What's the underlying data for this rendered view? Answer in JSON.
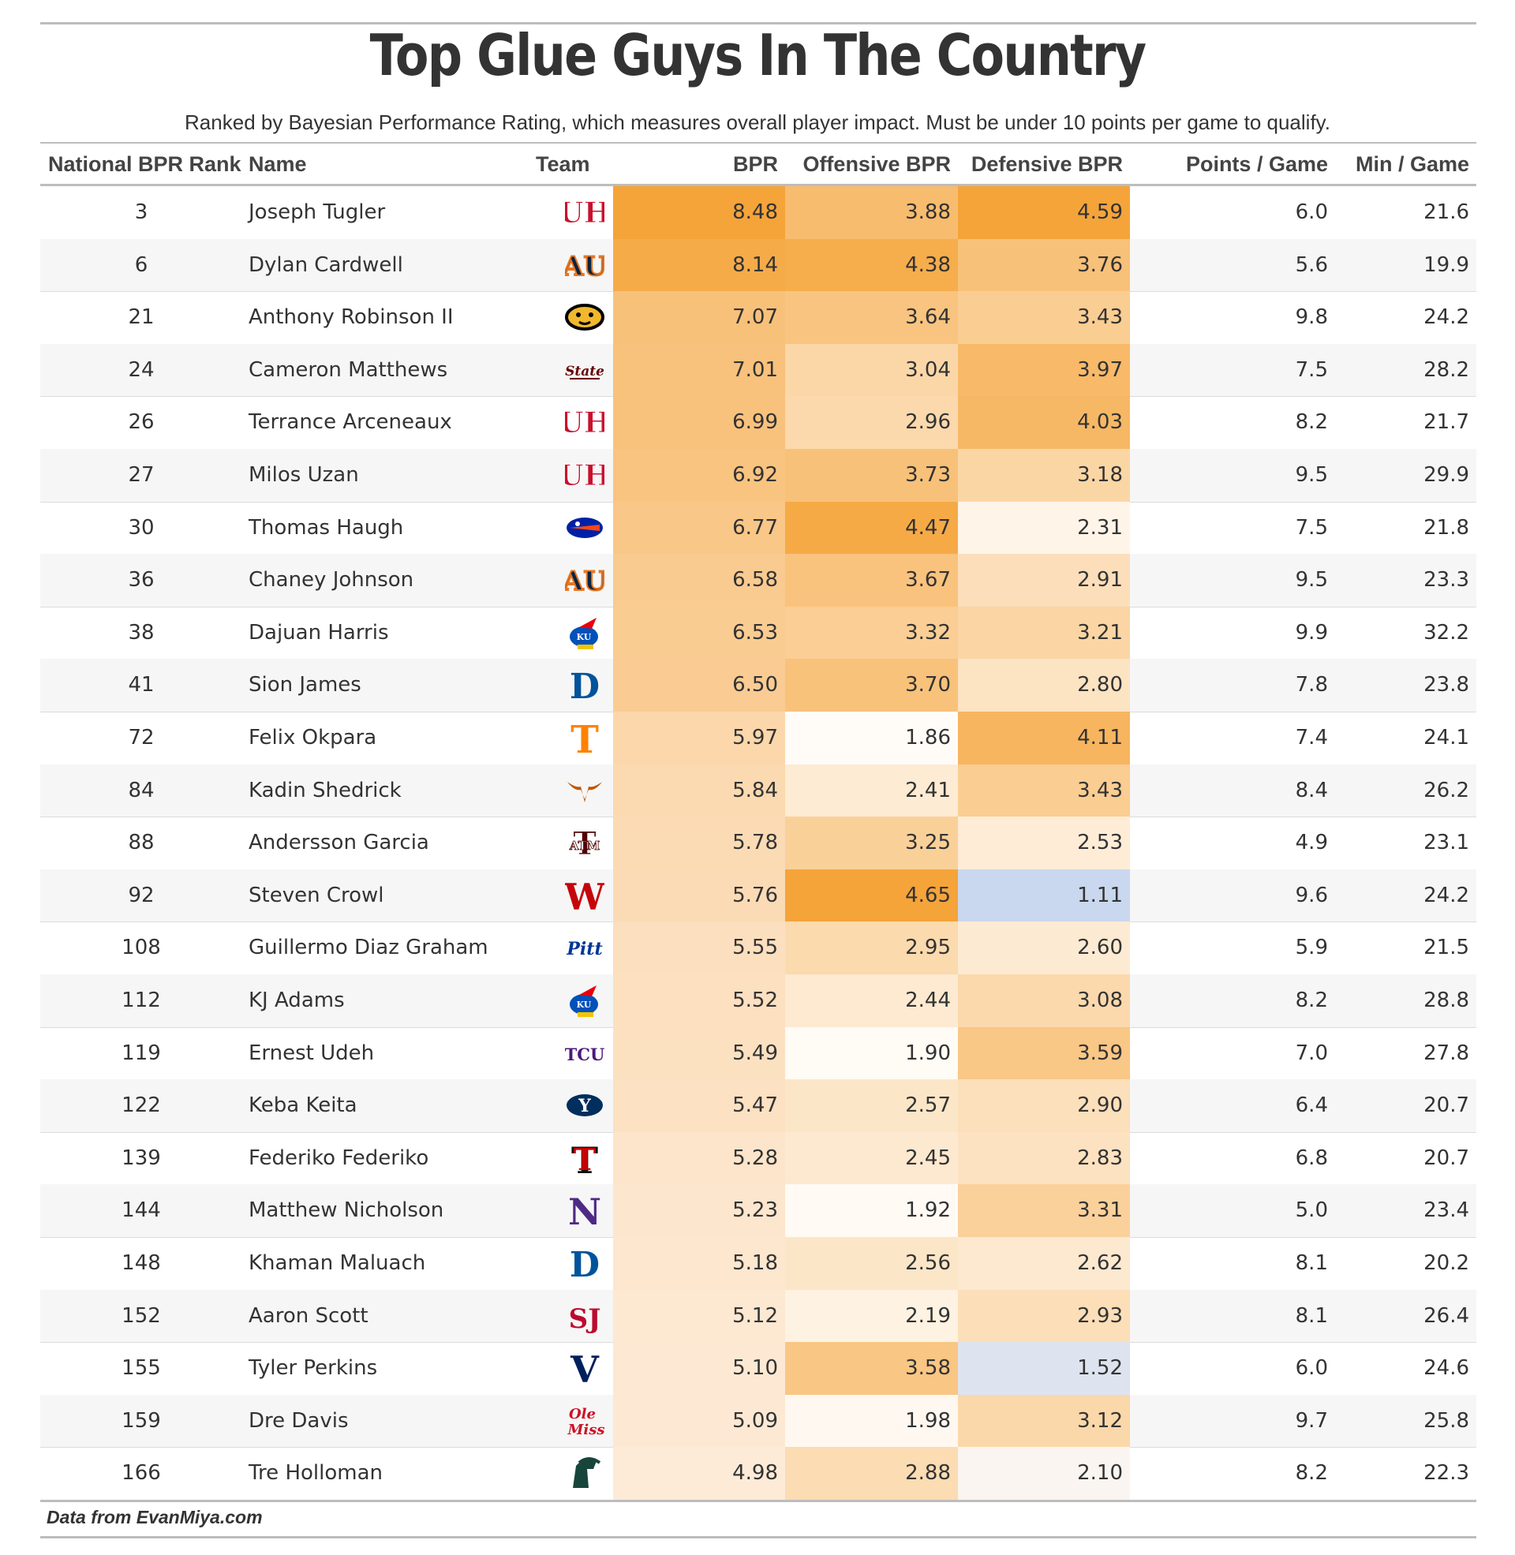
{
  "chart_data": {
    "type": "table",
    "title": "Top Glue Guys In The Country",
    "subtitle": "Ranked by Bayesian Performance Rating, which measures overall player impact. Must be under 10 points per game to qualify.",
    "source": "Data from EvanMiya.com",
    "columns": [
      "National BPR Rank",
      "Name",
      "Team",
      "BPR",
      "Offensive BPR",
      "Defensive BPR",
      "Points / Game",
      "Min / Game"
    ],
    "rows": [
      {
        "rank": "3",
        "name": "Joseph Tugler",
        "team": "Houston",
        "bpr": "8.48",
        "obpr": "3.88",
        "dbpr": "4.59",
        "ppg": "6.0",
        "mpg": "21.6"
      },
      {
        "rank": "6",
        "name": "Dylan Cardwell",
        "team": "Auburn",
        "bpr": "8.14",
        "obpr": "4.38",
        "dbpr": "3.76",
        "ppg": "5.6",
        "mpg": "19.9"
      },
      {
        "rank": "21",
        "name": "Anthony Robinson II",
        "team": "Missouri",
        "bpr": "7.07",
        "obpr": "3.64",
        "dbpr": "3.43",
        "ppg": "9.8",
        "mpg": "24.2"
      },
      {
        "rank": "24",
        "name": "Cameron Matthews",
        "team": "Mississippi State",
        "bpr": "7.01",
        "obpr": "3.04",
        "dbpr": "3.97",
        "ppg": "7.5",
        "mpg": "28.2"
      },
      {
        "rank": "26",
        "name": "Terrance Arceneaux",
        "team": "Houston",
        "bpr": "6.99",
        "obpr": "2.96",
        "dbpr": "4.03",
        "ppg": "8.2",
        "mpg": "21.7"
      },
      {
        "rank": "27",
        "name": "Milos Uzan",
        "team": "Houston",
        "bpr": "6.92",
        "obpr": "3.73",
        "dbpr": "3.18",
        "ppg": "9.5",
        "mpg": "29.9"
      },
      {
        "rank": "30",
        "name": "Thomas Haugh",
        "team": "Florida",
        "bpr": "6.77",
        "obpr": "4.47",
        "dbpr": "2.31",
        "ppg": "7.5",
        "mpg": "21.8"
      },
      {
        "rank": "36",
        "name": "Chaney Johnson",
        "team": "Auburn",
        "bpr": "6.58",
        "obpr": "3.67",
        "dbpr": "2.91",
        "ppg": "9.5",
        "mpg": "23.3"
      },
      {
        "rank": "38",
        "name": "Dajuan Harris",
        "team": "Kansas",
        "bpr": "6.53",
        "obpr": "3.32",
        "dbpr": "3.21",
        "ppg": "9.9",
        "mpg": "32.2"
      },
      {
        "rank": "41",
        "name": "Sion James",
        "team": "Duke",
        "bpr": "6.50",
        "obpr": "3.70",
        "dbpr": "2.80",
        "ppg": "7.8",
        "mpg": "23.8"
      },
      {
        "rank": "72",
        "name": "Felix Okpara",
        "team": "Tennessee",
        "bpr": "5.97",
        "obpr": "1.86",
        "dbpr": "4.11",
        "ppg": "7.4",
        "mpg": "24.1"
      },
      {
        "rank": "84",
        "name": "Kadin Shedrick",
        "team": "Texas",
        "bpr": "5.84",
        "obpr": "2.41",
        "dbpr": "3.43",
        "ppg": "8.4",
        "mpg": "26.2"
      },
      {
        "rank": "88",
        "name": "Andersson Garcia",
        "team": "Texas A&M",
        "bpr": "5.78",
        "obpr": "3.25",
        "dbpr": "2.53",
        "ppg": "4.9",
        "mpg": "23.1"
      },
      {
        "rank": "92",
        "name": "Steven Crowl",
        "team": "Wisconsin",
        "bpr": "5.76",
        "obpr": "4.65",
        "dbpr": "1.11",
        "ppg": "9.6",
        "mpg": "24.2"
      },
      {
        "rank": "108",
        "name": "Guillermo Diaz Graham",
        "team": "Pitt",
        "bpr": "5.55",
        "obpr": "2.95",
        "dbpr": "2.60",
        "ppg": "5.9",
        "mpg": "21.5"
      },
      {
        "rank": "112",
        "name": "KJ Adams",
        "team": "Kansas",
        "bpr": "5.52",
        "obpr": "2.44",
        "dbpr": "3.08",
        "ppg": "8.2",
        "mpg": "28.8"
      },
      {
        "rank": "119",
        "name": "Ernest Udeh",
        "team": "TCU",
        "bpr": "5.49",
        "obpr": "1.90",
        "dbpr": "3.59",
        "ppg": "7.0",
        "mpg": "27.8"
      },
      {
        "rank": "122",
        "name": "Keba Keita",
        "team": "BYU",
        "bpr": "5.47",
        "obpr": "2.57",
        "dbpr": "2.90",
        "ppg": "6.4",
        "mpg": "20.7"
      },
      {
        "rank": "139",
        "name": "Federiko Federiko",
        "team": "Texas Tech",
        "bpr": "5.28",
        "obpr": "2.45",
        "dbpr": "2.83",
        "ppg": "6.8",
        "mpg": "20.7"
      },
      {
        "rank": "144",
        "name": "Matthew Nicholson",
        "team": "Northwestern",
        "bpr": "5.23",
        "obpr": "1.92",
        "dbpr": "3.31",
        "ppg": "5.0",
        "mpg": "23.4"
      },
      {
        "rank": "148",
        "name": "Khaman Maluach",
        "team": "Duke",
        "bpr": "5.18",
        "obpr": "2.56",
        "dbpr": "2.62",
        "ppg": "8.1",
        "mpg": "20.2"
      },
      {
        "rank": "152",
        "name": "Aaron Scott",
        "team": "St. John's",
        "bpr": "5.12",
        "obpr": "2.19",
        "dbpr": "2.93",
        "ppg": "8.1",
        "mpg": "26.4"
      },
      {
        "rank": "155",
        "name": "Tyler Perkins",
        "team": "Villanova",
        "bpr": "5.10",
        "obpr": "3.58",
        "dbpr": "1.52",
        "ppg": "6.0",
        "mpg": "24.6"
      },
      {
        "rank": "159",
        "name": "Dre Davis",
        "team": "Ole Miss",
        "bpr": "5.09",
        "obpr": "1.98",
        "dbpr": "3.12",
        "ppg": "9.7",
        "mpg": "25.8"
      },
      {
        "rank": "166",
        "name": "Tre Holloman",
        "team": "Michigan State",
        "bpr": "4.98",
        "obpr": "2.88",
        "dbpr": "2.10",
        "ppg": "8.2",
        "mpg": "22.3"
      }
    ],
    "color_scale": {
      "bpr": {
        "low_value": 4.98,
        "high_value": 8.48,
        "low_color": "#fdebd8",
        "high_color": "#f5a43a"
      },
      "obpr": {
        "low_value": 1.86,
        "high_value": 4.65,
        "low_color": "#fffcf8",
        "high_color": "#f5a43a"
      },
      "dbpr": {
        "low_value": 1.11,
        "mid_value": 2.2,
        "high_value": 4.59,
        "low_color": "#c9d8ee",
        "mid_color": "#fff8f0",
        "high_color": "#f5a43a"
      }
    },
    "team_logos": {
      "Houston": {
        "glyph": "UH",
        "color": "#c8102e"
      },
      "Auburn": {
        "glyph": "AU",
        "color": "#0c2340",
        "accent": "#e87722"
      },
      "Missouri": {
        "glyph": "tiger",
        "color": "#000000",
        "accent": "#f1b82d"
      },
      "Mississippi State": {
        "glyph": "State",
        "color": "#660000"
      },
      "Florida": {
        "glyph": "gator",
        "color": "#0021a5",
        "accent": "#fa4616"
      },
      "Kansas": {
        "glyph": "KU",
        "color": "#0051ba",
        "accent": "#e8000d"
      },
      "Duke": {
        "glyph": "D",
        "color": "#00539b"
      },
      "Tennessee": {
        "glyph": "T",
        "color": "#ff8200"
      },
      "Texas": {
        "glyph": "longhorn",
        "color": "#bf5700"
      },
      "Texas A&M": {
        "glyph": "ATM",
        "color": "#500000"
      },
      "Wisconsin": {
        "glyph": "W",
        "color": "#c5050c"
      },
      "Pitt": {
        "glyph": "Pitt",
        "color": "#003594"
      },
      "TCU": {
        "glyph": "TCU",
        "color": "#4d1979"
      },
      "BYU": {
        "glyph": "Y",
        "color": "#002e5d"
      },
      "Texas Tech": {
        "glyph": "TT",
        "color": "#cc0000"
      },
      "Northwestern": {
        "glyph": "N",
        "color": "#4e2a84"
      },
      "St. John's": {
        "glyph": "SJ",
        "color": "#ba0c2f"
      },
      "Villanova": {
        "glyph": "V",
        "color": "#00205b"
      },
      "Ole Miss": {
        "glyph": "OleMiss",
        "color": "#ce1126"
      },
      "Michigan State": {
        "glyph": "spartan",
        "color": "#18453b"
      }
    }
  }
}
